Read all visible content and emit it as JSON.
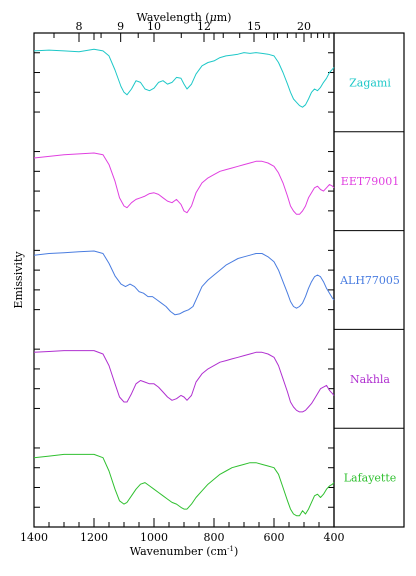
{
  "chart_data": {
    "type": "line",
    "title": "",
    "xlabel": "Wavenumber (cm",
    "xlabel_sup": "-1",
    "xlabel_end": ")",
    "x2label_pre": "Wavelength (",
    "x2label_mu": "μ",
    "x2label_end": "m)",
    "ylabel": "Emissivity",
    "xlim": [
      1400,
      400
    ],
    "xticks": [
      1400,
      1200,
      1000,
      800,
      600,
      400
    ],
    "x2ticks": [
      8,
      9,
      10,
      12,
      15,
      20
    ],
    "grid": false,
    "series": [
      {
        "name": "Zagami",
        "color": "#1ec8c8",
        "x": [
          1400,
          1350,
          1300,
          1250,
          1200,
          1170,
          1150,
          1130,
          1110,
          1100,
          1090,
          1075,
          1060,
          1045,
          1030,
          1015,
          1000,
          985,
          970,
          955,
          940,
          925,
          910,
          900,
          890,
          875,
          860,
          840,
          820,
          800,
          780,
          760,
          740,
          720,
          700,
          680,
          660,
          640,
          620,
          600,
          585,
          570,
          555,
          545,
          535,
          525,
          515,
          505,
          495,
          485,
          475,
          465,
          455,
          445,
          435,
          425,
          415,
          405,
          400
        ],
        "y": [
          0.88,
          0.89,
          0.88,
          0.87,
          0.9,
          0.88,
          0.82,
          0.65,
          0.45,
          0.38,
          0.35,
          0.42,
          0.52,
          0.5,
          0.42,
          0.4,
          0.43,
          0.5,
          0.52,
          0.48,
          0.5,
          0.56,
          0.55,
          0.48,
          0.42,
          0.48,
          0.6,
          0.7,
          0.74,
          0.76,
          0.8,
          0.82,
          0.83,
          0.84,
          0.86,
          0.85,
          0.86,
          0.85,
          0.84,
          0.82,
          0.74,
          0.62,
          0.48,
          0.38,
          0.3,
          0.26,
          0.22,
          0.2,
          0.23,
          0.3,
          0.38,
          0.42,
          0.4,
          0.44,
          0.5,
          0.55,
          0.62,
          0.66,
          0.68
        ]
      },
      {
        "name": "EET79001",
        "color": "#e040e0",
        "x": [
          1400,
          1350,
          1300,
          1250,
          1200,
          1170,
          1150,
          1130,
          1115,
          1100,
          1090,
          1075,
          1060,
          1045,
          1030,
          1015,
          1000,
          985,
          970,
          955,
          940,
          925,
          910,
          900,
          890,
          875,
          860,
          840,
          820,
          800,
          780,
          760,
          740,
          720,
          700,
          680,
          660,
          640,
          620,
          600,
          585,
          570,
          555,
          545,
          535,
          525,
          515,
          505,
          495,
          485,
          475,
          465,
          455,
          445,
          435,
          425,
          415,
          405,
          400
        ],
        "y": [
          0.78,
          0.8,
          0.82,
          0.83,
          0.84,
          0.82,
          0.7,
          0.5,
          0.3,
          0.2,
          0.18,
          0.24,
          0.28,
          0.3,
          0.32,
          0.35,
          0.36,
          0.34,
          0.3,
          0.26,
          0.24,
          0.28,
          0.22,
          0.14,
          0.12,
          0.2,
          0.36,
          0.48,
          0.54,
          0.58,
          0.62,
          0.64,
          0.66,
          0.68,
          0.7,
          0.72,
          0.74,
          0.74,
          0.72,
          0.68,
          0.6,
          0.48,
          0.32,
          0.2,
          0.14,
          0.1,
          0.1,
          0.14,
          0.2,
          0.3,
          0.36,
          0.42,
          0.44,
          0.4,
          0.38,
          0.42,
          0.46,
          0.44,
          0.42
        ]
      },
      {
        "name": "ALH77005",
        "color": "#4a7de0",
        "x": [
          1400,
          1350,
          1300,
          1250,
          1200,
          1170,
          1150,
          1130,
          1110,
          1095,
          1080,
          1065,
          1050,
          1035,
          1020,
          1005,
          990,
          975,
          960,
          945,
          930,
          915,
          900,
          885,
          870,
          855,
          840,
          820,
          800,
          780,
          760,
          740,
          720,
          700,
          680,
          660,
          640,
          620,
          600,
          585,
          570,
          555,
          545,
          535,
          525,
          515,
          505,
          495,
          485,
          475,
          465,
          455,
          445,
          435,
          425,
          415,
          405,
          400
        ],
        "y": [
          0.8,
          0.82,
          0.83,
          0.84,
          0.85,
          0.82,
          0.7,
          0.55,
          0.45,
          0.42,
          0.45,
          0.42,
          0.36,
          0.34,
          0.3,
          0.3,
          0.26,
          0.22,
          0.18,
          0.12,
          0.08,
          0.09,
          0.12,
          0.14,
          0.18,
          0.3,
          0.42,
          0.5,
          0.56,
          0.62,
          0.68,
          0.72,
          0.76,
          0.78,
          0.8,
          0.82,
          0.82,
          0.78,
          0.72,
          0.62,
          0.48,
          0.34,
          0.24,
          0.18,
          0.16,
          0.18,
          0.22,
          0.3,
          0.4,
          0.48,
          0.54,
          0.56,
          0.54,
          0.48,
          0.4,
          0.34,
          0.28,
          0.26
        ]
      },
      {
        "name": "Nakhla",
        "color": "#b030d0",
        "x": [
          1400,
          1350,
          1300,
          1250,
          1200,
          1170,
          1150,
          1130,
          1115,
          1100,
          1090,
          1075,
          1060,
          1045,
          1030,
          1015,
          1000,
          985,
          970,
          955,
          940,
          925,
          910,
          900,
          890,
          875,
          860,
          840,
          820,
          800,
          780,
          760,
          740,
          720,
          700,
          680,
          660,
          640,
          620,
          600,
          585,
          570,
          555,
          545,
          535,
          525,
          515,
          505,
          495,
          485,
          475,
          465,
          455,
          445,
          435,
          425,
          415,
          405,
          400
        ],
        "y": [
          0.82,
          0.83,
          0.84,
          0.84,
          0.84,
          0.8,
          0.66,
          0.44,
          0.28,
          0.22,
          0.22,
          0.32,
          0.44,
          0.48,
          0.46,
          0.44,
          0.44,
          0.4,
          0.34,
          0.28,
          0.24,
          0.26,
          0.3,
          0.28,
          0.24,
          0.3,
          0.46,
          0.56,
          0.62,
          0.66,
          0.7,
          0.72,
          0.74,
          0.76,
          0.78,
          0.8,
          0.82,
          0.82,
          0.8,
          0.76,
          0.66,
          0.5,
          0.34,
          0.22,
          0.16,
          0.12,
          0.1,
          0.1,
          0.12,
          0.16,
          0.2,
          0.26,
          0.32,
          0.38,
          0.4,
          0.42,
          0.36,
          0.32,
          0.3
        ]
      },
      {
        "name": "Lafayette",
        "color": "#30c030",
        "x": [
          1400,
          1350,
          1300,
          1250,
          1200,
          1170,
          1150,
          1130,
          1115,
          1100,
          1090,
          1075,
          1060,
          1045,
          1030,
          1015,
          1000,
          985,
          970,
          955,
          940,
          925,
          910,
          900,
          890,
          875,
          860,
          840,
          820,
          800,
          780,
          760,
          740,
          720,
          700,
          680,
          660,
          640,
          620,
          600,
          585,
          570,
          555,
          545,
          535,
          525,
          515,
          505,
          495,
          485,
          475,
          465,
          455,
          445,
          435,
          425,
          415,
          405,
          400
        ],
        "y": [
          0.74,
          0.76,
          0.78,
          0.78,
          0.78,
          0.74,
          0.58,
          0.36,
          0.22,
          0.18,
          0.2,
          0.28,
          0.36,
          0.42,
          0.44,
          0.4,
          0.36,
          0.32,
          0.28,
          0.24,
          0.2,
          0.18,
          0.14,
          0.12,
          0.12,
          0.18,
          0.26,
          0.34,
          0.42,
          0.48,
          0.54,
          0.58,
          0.62,
          0.64,
          0.66,
          0.68,
          0.68,
          0.66,
          0.64,
          0.62,
          0.54,
          0.38,
          0.22,
          0.12,
          0.06,
          0.04,
          0.04,
          0.1,
          0.06,
          0.12,
          0.2,
          0.28,
          0.3,
          0.26,
          0.3,
          0.36,
          0.4,
          0.42,
          0.44
        ]
      }
    ]
  }
}
